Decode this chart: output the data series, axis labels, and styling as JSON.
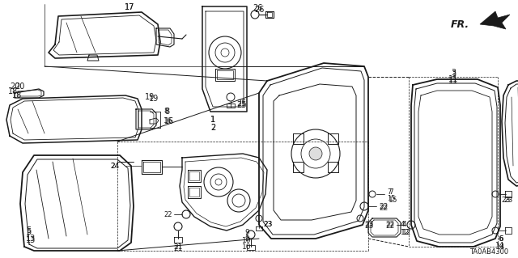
{
  "background_color": "#ffffff",
  "diagram_code": "TA0AB4300",
  "fr_label": "FR.",
  "line_color": "#1a1a1a",
  "fig_width": 6.4,
  "fig_height": 3.19,
  "dpi": 100
}
